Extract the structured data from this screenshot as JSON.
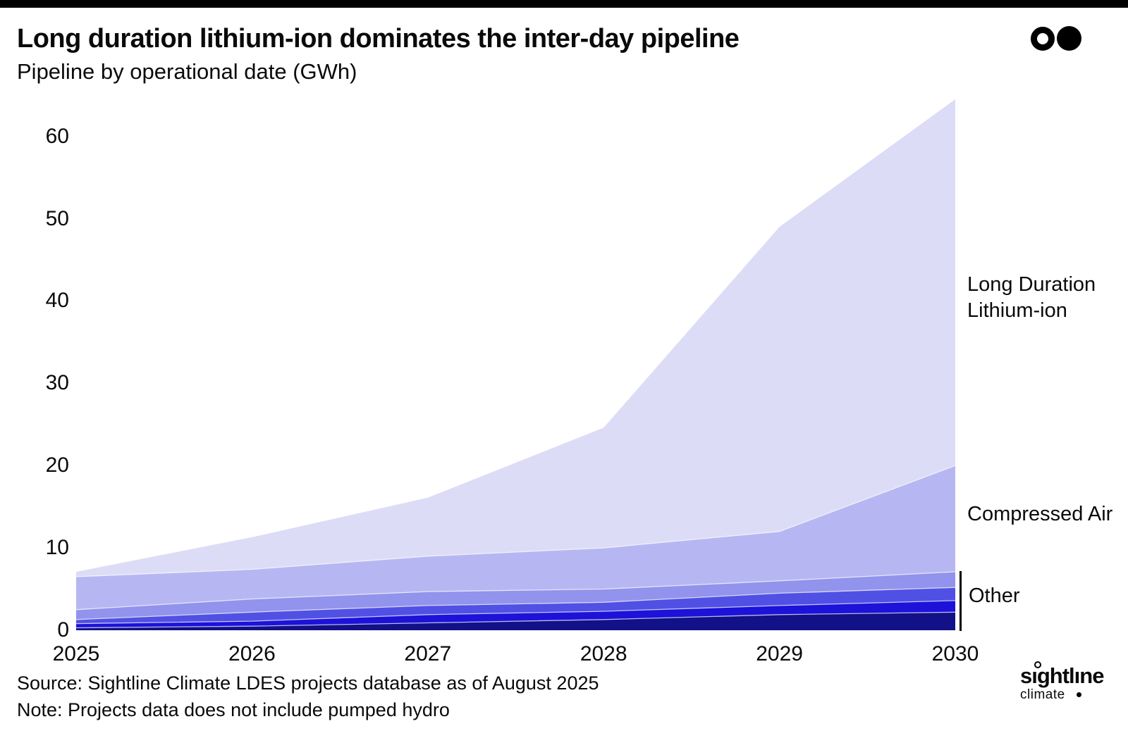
{
  "header": {
    "title": "Long duration lithium-ion dominates the inter-day pipeline",
    "subtitle": "Pipeline by operational date (GWh)"
  },
  "chart_data": {
    "type": "area",
    "stacked": true,
    "title": "Long duration lithium-ion dominates the inter-day pipeline",
    "subtitle": "Pipeline by operational date (GWh)",
    "unit": "GWh",
    "x": [
      2025,
      2026,
      2027,
      2028,
      2029,
      2030
    ],
    "x_labels": [
      "2025",
      "2026",
      "2027",
      "2028",
      "2029",
      "2030"
    ],
    "yticks": [
      0,
      10,
      20,
      30,
      40,
      50,
      60
    ],
    "ylim": [
      0,
      65
    ],
    "grid": false,
    "legend_position": "right-annotations",
    "series_bottom_to_top": [
      {
        "name": "other-tier-4",
        "group": "Other",
        "color": "#131187",
        "values": [
          0.3,
          0.5,
          0.9,
          1.3,
          1.9,
          2.2
        ]
      },
      {
        "name": "other-tier-3",
        "group": "Other",
        "color": "#1d12d8",
        "values": [
          0.5,
          0.6,
          1.0,
          1.0,
          1.1,
          1.4
        ]
      },
      {
        "name": "other-tier-2",
        "group": "Other",
        "color": "#5150e4",
        "values": [
          0.5,
          1.1,
          1.1,
          1.1,
          1.5,
          1.6
        ]
      },
      {
        "name": "other-tier-1",
        "group": "Other",
        "color": "#9193ec",
        "values": [
          1.2,
          1.6,
          1.7,
          1.6,
          1.5,
          1.9
        ]
      },
      {
        "name": "compressed-air",
        "group": "Compressed Air",
        "color": "#b6b7f2",
        "values": [
          4.0,
          3.6,
          4.3,
          5.0,
          6.0,
          12.9
        ]
      },
      {
        "name": "long-duration-lithium-ion",
        "group": "Long Duration Lithium-ion",
        "color": "#dcdcf7",
        "values": [
          0.6,
          3.9,
          7.1,
          14.6,
          37.0,
          44.5
        ]
      }
    ],
    "totals": [
      7.1,
      11.3,
      16.1,
      24.6,
      49.0,
      64.5
    ]
  },
  "annotations": {
    "li_ion": {
      "line1": "Long Duration",
      "line2": "Lithium-ion"
    },
    "compressed_air": "Compressed Air",
    "other": "Other"
  },
  "footer": {
    "source": "Source: Sightline Climate LDES projects database as of August 2025",
    "note": "Note: Projects data does not include pumped hydro"
  },
  "brand": {
    "name": "sıghtlıne",
    "sub": "climate"
  },
  "colors": {
    "background": "#ffffff",
    "topbar": "#000000",
    "text": "#0a0a0a",
    "band_separator": "#ffffff"
  }
}
